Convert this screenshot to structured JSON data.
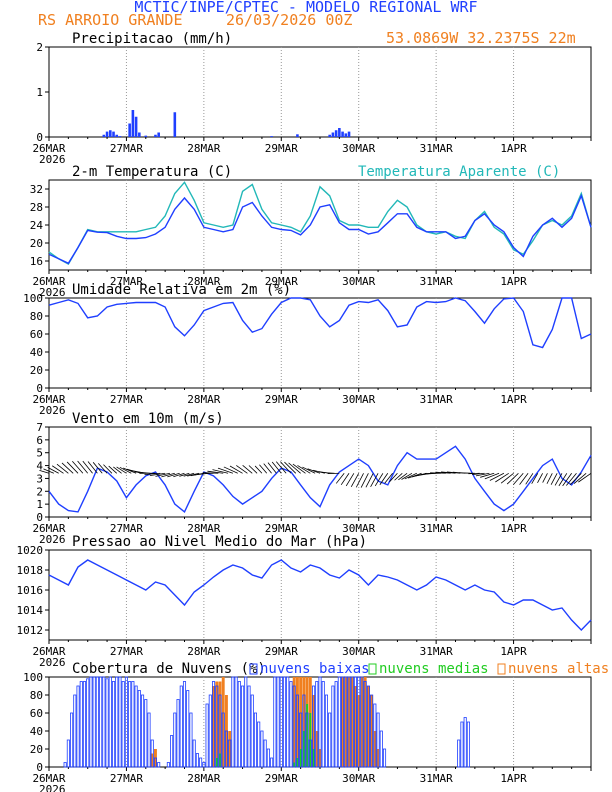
{
  "header": {
    "title": "MCTIC/INPE/CPTEC - MODELO REGIONAL WRF",
    "location": "RS ARROIO GRANDE",
    "run": "26/03/2026 00Z",
    "coords": "53.0869W 32.2375S 22m"
  },
  "colors": {
    "blue": "#1f3fff",
    "cyan": "#22b8b8",
    "orange": "#f08020",
    "green": "#22cc22",
    "purple": "#b040b0",
    "title": "#2040ff",
    "orange_text": "#f08020"
  },
  "x_axis": {
    "tick_labels": [
      "26MAR",
      "27MAR",
      "28MAR",
      "29MAR",
      "30MAR",
      "31MAR",
      "1APR"
    ],
    "year_label": "2026",
    "hours_total": 168
  },
  "chart_data": [
    {
      "type": "bar",
      "title": "Precipitacao (mm/h)",
      "ylim": [
        0,
        2
      ],
      "yticks": [
        "0",
        "1",
        "2"
      ],
      "hours": [
        17,
        18,
        19,
        20,
        21,
        22,
        25,
        26,
        27,
        28,
        30,
        33,
        34,
        39,
        69,
        77,
        87,
        88,
        89,
        90,
        91,
        92,
        93
      ],
      "values": [
        0.05,
        0.12,
        0.15,
        0.12,
        0.05,
        0.02,
        0.3,
        0.6,
        0.45,
        0.1,
        0.03,
        0.05,
        0.1,
        0.55,
        0.02,
        0.06,
        0.05,
        0.1,
        0.15,
        0.2,
        0.12,
        0.08,
        0.12
      ]
    },
    {
      "type": "line",
      "title": "2-m Temperatura (C)",
      "legend_extra": "Temperatura Aparente (C)",
      "ylim": [
        14,
        34
      ],
      "yticks": [
        "16",
        "20",
        "24",
        "28",
        "32"
      ],
      "hours": [
        0,
        3,
        6,
        9,
        12,
        15,
        18,
        21,
        24,
        27,
        30,
        33,
        36,
        39,
        42,
        45,
        48,
        51,
        54,
        57,
        60,
        63,
        66,
        69,
        72,
        75,
        78,
        81,
        84,
        87,
        90,
        93,
        96,
        99,
        102,
        105,
        108,
        111,
        114,
        117,
        120,
        123,
        126,
        129,
        132,
        135,
        138,
        141,
        144,
        147,
        150,
        153,
        156,
        159,
        162,
        165,
        168
      ],
      "series": [
        {
          "name": "Temperatura 2m",
          "values": [
            17.5,
            16.5,
            15.5,
            19,
            22.8,
            22.4,
            22.3,
            21.5,
            21,
            21,
            21.2,
            22,
            23.5,
            27.5,
            30,
            27.5,
            23.5,
            23,
            22.5,
            23,
            28,
            29,
            26,
            23.5,
            23,
            22.8,
            21.8,
            24,
            28,
            28.5,
            24.5,
            23,
            23,
            22,
            22.5,
            24.5,
            26.5,
            26.5,
            23.5,
            22.5,
            22.5,
            22.5,
            21,
            21.5,
            25,
            26.5,
            24,
            22.5,
            19,
            17,
            21.5,
            24,
            25.5,
            23.5,
            25.5,
            30.5,
            23.5
          ]
        },
        {
          "name": "Temperatura Aparente",
          "values": [
            18,
            16.5,
            15.3,
            19,
            23,
            22.5,
            22.5,
            22.5,
            22.5,
            22.5,
            23,
            23.5,
            26,
            31,
            33.5,
            29.5,
            24.5,
            24,
            23.5,
            24,
            31.5,
            33,
            27.5,
            24.5,
            24,
            23.5,
            22.5,
            26,
            32.5,
            30.5,
            25,
            24,
            24,
            23.5,
            23.5,
            27,
            29.5,
            28,
            24,
            22.5,
            22,
            22.5,
            21.5,
            21,
            25,
            27,
            23.5,
            22,
            18.5,
            17.5,
            20.5,
            24,
            25,
            24,
            26,
            31,
            23.5
          ]
        }
      ]
    },
    {
      "type": "line",
      "title": "Umidade Relativa em 2m (%)",
      "ylim": [
        0,
        100
      ],
      "yticks": [
        "0",
        "20",
        "40",
        "60",
        "80",
        "100"
      ],
      "hours": [
        0,
        3,
        6,
        9,
        12,
        15,
        18,
        21,
        24,
        27,
        30,
        33,
        36,
        39,
        42,
        45,
        48,
        51,
        54,
        57,
        60,
        63,
        66,
        69,
        72,
        75,
        78,
        81,
        84,
        87,
        90,
        93,
        96,
        99,
        102,
        105,
        108,
        111,
        114,
        117,
        120,
        123,
        126,
        129,
        132,
        135,
        138,
        141,
        144,
        147,
        150,
        153,
        156,
        159,
        162,
        165,
        168
      ],
      "values": [
        92,
        95,
        98,
        94,
        78,
        80,
        90,
        93,
        94,
        95,
        95,
        95,
        90,
        68,
        58,
        70,
        86,
        90,
        94,
        95,
        75,
        62,
        66,
        82,
        95,
        100,
        100,
        98,
        80,
        68,
        75,
        92,
        96,
        95,
        98,
        86,
        68,
        70,
        90,
        96,
        95,
        96,
        100,
        97,
        85,
        72,
        88,
        99,
        100,
        85,
        48,
        45,
        65,
        100,
        100,
        55,
        60
      ]
    },
    {
      "type": "line",
      "title": "Vento em 10m (m/s)",
      "ylim": [
        0,
        7
      ],
      "yticks": [
        "0",
        "1",
        "2",
        "3",
        "4",
        "5",
        "6",
        "7"
      ],
      "hours": [
        0,
        3,
        6,
        9,
        12,
        15,
        18,
        21,
        24,
        27,
        30,
        33,
        36,
        39,
        42,
        45,
        48,
        51,
        54,
        57,
        60,
        63,
        66,
        69,
        72,
        75,
        78,
        81,
        84,
        87,
        90,
        93,
        96,
        99,
        102,
        105,
        108,
        111,
        114,
        117,
        120,
        123,
        126,
        129,
        132,
        135,
        138,
        141,
        144,
        147,
        150,
        153,
        156,
        159,
        162,
        165,
        168
      ],
      "values": [
        2,
        1,
        0.5,
        0.4,
        2,
        3.8,
        3.5,
        2.8,
        1.5,
        2.5,
        3.2,
        3.5,
        2.5,
        1,
        0.4,
        2,
        3.5,
        3.2,
        2.5,
        1.6,
        1,
        1.5,
        2,
        3,
        3.8,
        3.5,
        2.5,
        1.5,
        0.8,
        2.5,
        3.5,
        4,
        4.5,
        4,
        2.8,
        2.5,
        4,
        5,
        4.5,
        4.5,
        4.5,
        5,
        5.5,
        4.5,
        3,
        2,
        1,
        0.5,
        1,
        2,
        3,
        4,
        4.5,
        3,
        2.5,
        3.5,
        4.8
      ],
      "barbs_note": "wind barbs along 3.5 m/s line"
    },
    {
      "type": "line",
      "title": "Pressao ao Nivel Medio do Mar (hPa)",
      "ylim": [
        1011,
        1020
      ],
      "yticks": [
        "1012",
        "1014",
        "1016",
        "1018",
        "1020"
      ],
      "hours": [
        0,
        3,
        6,
        9,
        12,
        15,
        18,
        21,
        24,
        27,
        30,
        33,
        36,
        39,
        42,
        45,
        48,
        51,
        54,
        57,
        60,
        63,
        66,
        69,
        72,
        75,
        78,
        81,
        84,
        87,
        90,
        93,
        96,
        99,
        102,
        105,
        108,
        111,
        114,
        117,
        120,
        123,
        126,
        129,
        132,
        135,
        138,
        141,
        144,
        147,
        150,
        153,
        156,
        159,
        162,
        165,
        168
      ],
      "values": [
        1017.5,
        1017,
        1016.5,
        1018.3,
        1019,
        1018.5,
        1018,
        1017.5,
        1017,
        1016.5,
        1016,
        1016.8,
        1016.5,
        1015.5,
        1014.5,
        1015.8,
        1016.5,
        1017.3,
        1018,
        1018.5,
        1018.2,
        1017.5,
        1017.2,
        1018.5,
        1019,
        1018.2,
        1017.8,
        1018.5,
        1018.2,
        1017.5,
        1017.2,
        1018,
        1017.5,
        1016.5,
        1017.5,
        1017.3,
        1017,
        1016.5,
        1016,
        1016.5,
        1017.3,
        1017,
        1016.5,
        1016,
        1016.5,
        1016,
        1015.8,
        1014.8,
        1014.5,
        1015,
        1015,
        1014.5,
        1014,
        1014.2,
        1013,
        1012,
        1013
      ]
    },
    {
      "type": "bar",
      "title": "Cobertura de Nuvens (%)",
      "ylim": [
        0,
        100
      ],
      "yticks": [
        "0",
        "20",
        "40",
        "60",
        "80",
        "100"
      ],
      "legend": [
        "nuvens baixas",
        "nuvens medias",
        "nuvens altas"
      ],
      "baixas": [
        0,
        0,
        0,
        0,
        0,
        5,
        30,
        60,
        80,
        90,
        95,
        95,
        98,
        100,
        100,
        100,
        100,
        100,
        98,
        100,
        95,
        100,
        100,
        95,
        100,
        95,
        95,
        90,
        85,
        80,
        75,
        60,
        30,
        10,
        5,
        0,
        0,
        5,
        35,
        60,
        75,
        90,
        95,
        85,
        60,
        30,
        15,
        10,
        5,
        70,
        80,
        95,
        90,
        80,
        60,
        40,
        30,
        100,
        100,
        95,
        90,
        100,
        90,
        80,
        60,
        50,
        40,
        30,
        20,
        10,
        100,
        100,
        100,
        100,
        100,
        95,
        90,
        80,
        60,
        80,
        60,
        30,
        90,
        95,
        100,
        95,
        80,
        60,
        90,
        95,
        100,
        100,
        100,
        100,
        100,
        100,
        100,
        100,
        95,
        90,
        80,
        70,
        60,
        40,
        20,
        0,
        0,
        0,
        0,
        0,
        0,
        0,
        0,
        0,
        0,
        0,
        0,
        0,
        0,
        0,
        0,
        0,
        0,
        0,
        0,
        0,
        0,
        30,
        50,
        55,
        50,
        0,
        0,
        0,
        0,
        0,
        0,
        0,
        0,
        0,
        0,
        0,
        0,
        0,
        0,
        0,
        0,
        0,
        0,
        0,
        0,
        0,
        0,
        0,
        0,
        0,
        0,
        0,
        0,
        0,
        0,
        0,
        0,
        0,
        0,
        0,
        0,
        0,
        0,
        0,
        0
      ],
      "medias": [
        0,
        0,
        0,
        0,
        0,
        0,
        0,
        0,
        0,
        0,
        0,
        0,
        0,
        0,
        0,
        0,
        0,
        0,
        0,
        0,
        0,
        0,
        0,
        0,
        0,
        0,
        0,
        0,
        0,
        0,
        0,
        0,
        0,
        0,
        0,
        0,
        0,
        0,
        0,
        0,
        0,
        0,
        0,
        0,
        0,
        0,
        0,
        0,
        0,
        0,
        0,
        0,
        10,
        15,
        0,
        0,
        0,
        0,
        0,
        0,
        0,
        0,
        0,
        0,
        0,
        0,
        0,
        0,
        0,
        0,
        0,
        0,
        0,
        0,
        0,
        0,
        5,
        10,
        20,
        40,
        70,
        60,
        20,
        0,
        0,
        0,
        0,
        0,
        0,
        0,
        0,
        0,
        0,
        0,
        0,
        0,
        0,
        0,
        0,
        0,
        0,
        0,
        0,
        0,
        0,
        0,
        0,
        0,
        0,
        0,
        0,
        0,
        0,
        0,
        0,
        0,
        0,
        0,
        0,
        0,
        0,
        0,
        0,
        0,
        0,
        0,
        0,
        0,
        0,
        0,
        0,
        0,
        0,
        0,
        0,
        0,
        0,
        0,
        0,
        0,
        0,
        0,
        0,
        0,
        0,
        0,
        0,
        0,
        0,
        0,
        0,
        0,
        0,
        0,
        0,
        0,
        0,
        0,
        0,
        0,
        0,
        0,
        0,
        0,
        0,
        0,
        0,
        0,
        0
      ],
      "altas": [
        0,
        0,
        0,
        0,
        0,
        0,
        0,
        0,
        0,
        0,
        0,
        0,
        0,
        0,
        0,
        0,
        0,
        0,
        0,
        0,
        0,
        0,
        0,
        0,
        0,
        0,
        0,
        0,
        0,
        0,
        0,
        0,
        15,
        20,
        0,
        0,
        0,
        0,
        0,
        0,
        0,
        0,
        0,
        0,
        0,
        0,
        0,
        0,
        0,
        0,
        0,
        90,
        95,
        95,
        100,
        80,
        40,
        0,
        0,
        0,
        0,
        0,
        0,
        0,
        0,
        0,
        0,
        0,
        0,
        0,
        0,
        0,
        0,
        0,
        0,
        0,
        100,
        100,
        100,
        100,
        100,
        100,
        80,
        40,
        20,
        0,
        0,
        0,
        0,
        0,
        0,
        100,
        100,
        100,
        100,
        90,
        80,
        100,
        100,
        90,
        80,
        40,
        20,
        0,
        0,
        0,
        0,
        0,
        0,
        0,
        0,
        0,
        0,
        0,
        0,
        0,
        0,
        0,
        0,
        0,
        0,
        0,
        0,
        0,
        0,
        0,
        0,
        0,
        0,
        0,
        0,
        0,
        0,
        0,
        0,
        0,
        0,
        0,
        0,
        0,
        0,
        0,
        0,
        0,
        0,
        0,
        0,
        0,
        0,
        0,
        0,
        0,
        0,
        0,
        0,
        0,
        0,
        0,
        0,
        0,
        0,
        0,
        0,
        0,
        0,
        0,
        0,
        0,
        0
      ]
    }
  ]
}
